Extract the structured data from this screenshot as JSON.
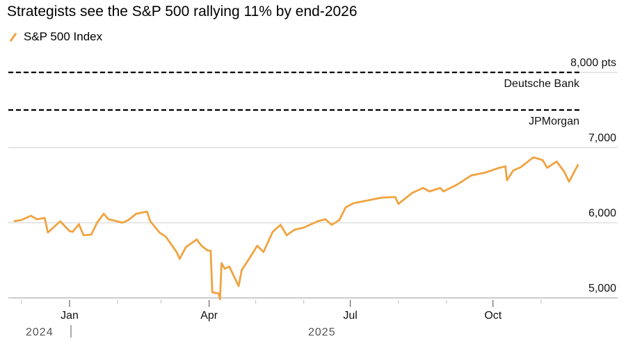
{
  "chart_data": {
    "type": "line",
    "title": "Strategists see the S&P 500 rallying 11% by end-2026",
    "legend": [
      {
        "name": "S&P 500 Index",
        "color": "#f0a340"
      }
    ],
    "legend_placement": "top-left",
    "y_axis": {
      "ticks": [
        5000,
        6000,
        7000,
        8000
      ],
      "tick_labels": [
        "5,000",
        "6,000",
        "7,000",
        "8,000 pts"
      ],
      "ylim": [
        5000,
        8000
      ],
      "position": "right",
      "grid": true
    },
    "x_axis": {
      "tick_labels": [
        "Jan",
        "Apr",
        "Jul",
        "Oct"
      ],
      "year_labels": [
        "2024",
        "2025"
      ],
      "xlim": [
        "2024-11-25",
        "2025-11-25"
      ]
    },
    "targets": [
      {
        "name": "Deutsche Bank",
        "value": 8000
      },
      {
        "name": "JPMorgan",
        "value": 7500
      }
    ],
    "series": [
      {
        "name": "S&P 500 Index",
        "color": "#f0a340",
        "points": [
          [
            "2024-11-26",
            6019
          ],
          [
            "2024-12-01",
            6037
          ],
          [
            "2024-12-07",
            6093
          ],
          [
            "2024-12-11",
            6046
          ],
          [
            "2024-12-16",
            6065
          ],
          [
            "2024-12-18",
            5870
          ],
          [
            "2024-12-23",
            5963
          ],
          [
            "2024-12-26",
            6019
          ],
          [
            "2025-01-01",
            5889
          ],
          [
            "2025-01-03",
            5880
          ],
          [
            "2025-01-07",
            5981
          ],
          [
            "2025-01-10",
            5833
          ],
          [
            "2025-01-15",
            5843
          ],
          [
            "2025-01-19",
            6009
          ],
          [
            "2025-01-23",
            6120
          ],
          [
            "2025-01-26",
            6046
          ],
          [
            "2025-01-30",
            6028
          ],
          [
            "2025-02-04",
            6000
          ],
          [
            "2025-02-08",
            6037
          ],
          [
            "2025-02-13",
            6120
          ],
          [
            "2025-02-20",
            6148
          ],
          [
            "2025-02-22",
            6019
          ],
          [
            "2025-02-28",
            5870
          ],
          [
            "2025-03-04",
            5815
          ],
          [
            "2025-03-11",
            5611
          ],
          [
            "2025-03-13",
            5519
          ],
          [
            "2025-03-17",
            5676
          ],
          [
            "2025-03-24",
            5778
          ],
          [
            "2025-03-27",
            5694
          ],
          [
            "2025-03-31",
            5630
          ],
          [
            "2025-04-02",
            5630
          ],
          [
            "2025-04-03",
            5074
          ],
          [
            "2025-04-07",
            5060
          ],
          [
            "2025-04-08",
            4982
          ],
          [
            "2025-04-09",
            5463
          ],
          [
            "2025-04-11",
            5389
          ],
          [
            "2025-04-14",
            5417
          ],
          [
            "2025-04-20",
            5157
          ],
          [
            "2025-04-22",
            5370
          ],
          [
            "2025-04-27",
            5528
          ],
          [
            "2025-05-02",
            5694
          ],
          [
            "2025-05-06",
            5611
          ],
          [
            "2025-05-12",
            5880
          ],
          [
            "2025-05-17",
            5972
          ],
          [
            "2025-05-21",
            5833
          ],
          [
            "2025-05-26",
            5907
          ],
          [
            "2025-06-01",
            5935
          ],
          [
            "2025-06-10",
            6019
          ],
          [
            "2025-06-15",
            6046
          ],
          [
            "2025-06-19",
            5972
          ],
          [
            "2025-06-24",
            6037
          ],
          [
            "2025-06-28",
            6204
          ],
          [
            "2025-07-03",
            6259
          ],
          [
            "2025-07-12",
            6296
          ],
          [
            "2025-07-21",
            6333
          ],
          [
            "2025-07-30",
            6343
          ],
          [
            "2025-08-01",
            6250
          ],
          [
            "2025-08-10",
            6398
          ],
          [
            "2025-08-17",
            6463
          ],
          [
            "2025-08-21",
            6417
          ],
          [
            "2025-08-28",
            6463
          ],
          [
            "2025-08-30",
            6417
          ],
          [
            "2025-09-08",
            6509
          ],
          [
            "2025-09-17",
            6630
          ],
          [
            "2025-09-26",
            6667
          ],
          [
            "2025-10-05",
            6731
          ],
          [
            "2025-10-09",
            6750
          ],
          [
            "2025-10-10",
            6565
          ],
          [
            "2025-10-14",
            6694
          ],
          [
            "2025-10-19",
            6741
          ],
          [
            "2025-10-27",
            6870
          ],
          [
            "2025-11-02",
            6833
          ],
          [
            "2025-11-05",
            6731
          ],
          [
            "2025-11-11",
            6815
          ],
          [
            "2025-11-16",
            6676
          ],
          [
            "2025-11-19",
            6546
          ],
          [
            "2025-11-25",
            6778
          ]
        ]
      }
    ]
  }
}
